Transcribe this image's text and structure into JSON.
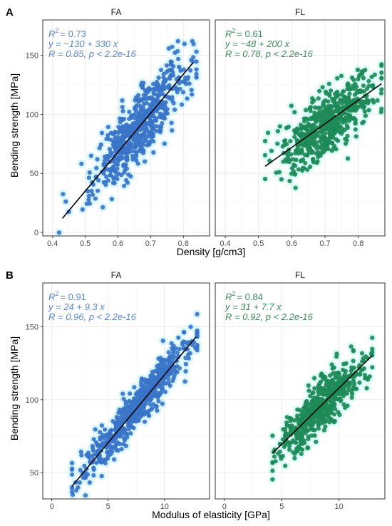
{
  "figure": {
    "panels": [
      {
        "letter": "A",
        "ylabel": "Bending strength [MPa]",
        "xlabel": "Density [g/cm3]"
      },
      {
        "letter": "B",
        "ylabel": "Bending strength [MPa]",
        "xlabel": "Modulus of elasticity [GPa]"
      }
    ],
    "colors": {
      "FA": "#3a74c8",
      "FA_halo": "#22ccff",
      "FL": "#1e8a58",
      "FL_halo": "#33eedd",
      "fit": "#000000",
      "strip_bg": "#ffffff",
      "grid": "#ebebeb",
      "panel_border": "#333333"
    }
  },
  "chart_data": [
    {
      "type": "scatter",
      "panel": "A",
      "xlabel": "Density [g/cm3]",
      "ylabel": "Bending strength [MPa]",
      "xlim": [
        0.37,
        0.88
      ],
      "ylim": [
        -3,
        180
      ],
      "xticks": [
        0.4,
        0.5,
        0.6,
        0.7,
        0.8
      ],
      "xtick_labels": [
        "0.4",
        "0.5",
        "0.6",
        "0.7",
        "0.8"
      ],
      "yticks": [
        0,
        50,
        100,
        150
      ],
      "ytick_labels": [
        "0",
        "50",
        "100",
        "150"
      ],
      "grid": true,
      "facets": [
        {
          "name": "FA",
          "r2_value": "= 0.73",
          "equation": "y = −130 + 330 x",
          "correlation": "R = 0.85, p < 2.2e-16",
          "fit": {
            "slope": 330,
            "intercept": -130,
            "x_range": [
              0.43,
              0.83
            ]
          },
          "x_center": 0.67,
          "x_sd": 0.075,
          "x_range": [
            0.42,
            0.84
          ],
          "y_sd": 14,
          "n": 600
        },
        {
          "name": "FL",
          "r2_value": "= 0.61",
          "equation": "y = −48 + 200 x",
          "correlation": "R = 0.78, p < 2.2e-16",
          "fit": {
            "slope": 200,
            "intercept": -48,
            "x_range": [
              0.52,
              0.87
            ]
          },
          "x_center": 0.71,
          "x_sd": 0.07,
          "x_range": [
            0.52,
            0.87
          ],
          "y_sd": 13,
          "n": 600
        }
      ]
    },
    {
      "type": "scatter",
      "panel": "B",
      "xlabel": "Modulus of elasticity [GPa]",
      "ylabel": "Bending strength [MPa]",
      "xlim": [
        -0.8,
        14.0
      ],
      "ylim": [
        32,
        180
      ],
      "xticks": [
        0,
        5,
        10
      ],
      "xtick_labels": [
        "0",
        "5",
        "10"
      ],
      "yticks": [
        50,
        100,
        150
      ],
      "ytick_labels": [
        "50",
        "100",
        "150"
      ],
      "grid": true,
      "facets": [
        {
          "name": "FA",
          "r2_value": "= 0.91",
          "equation": "y = 24 + 9.3 x",
          "correlation": "R = 0.96, p < 2.2e-16",
          "fit": {
            "slope": 9.3,
            "intercept": 24,
            "x_range": [
              1.8,
              12.8
            ]
          },
          "x_center": 7.5,
          "x_sd": 2.5,
          "x_range": [
            1.8,
            12.9
          ],
          "y_sd": 7,
          "n": 600
        },
        {
          "name": "FL",
          "r2_value": "= 0.84",
          "equation": "y = 31 + 7.7 x",
          "correlation": "R = 0.92, p < 2.2e-16",
          "fit": {
            "slope": 7.7,
            "intercept": 31,
            "x_range": [
              4.2,
              12.9
            ]
          },
          "x_center": 8.6,
          "x_sd": 1.9,
          "x_range": [
            4.2,
            12.9
          ],
          "y_sd": 8,
          "n": 600
        }
      ]
    }
  ]
}
